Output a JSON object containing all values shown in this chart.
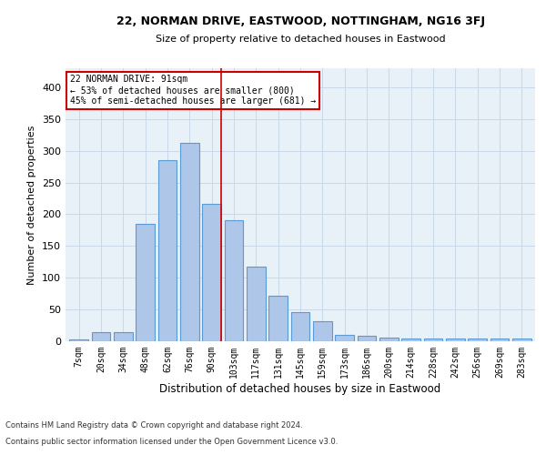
{
  "title1": "22, NORMAN DRIVE, EASTWOOD, NOTTINGHAM, NG16 3FJ",
  "title2": "Size of property relative to detached houses in Eastwood",
  "xlabel": "Distribution of detached houses by size in Eastwood",
  "ylabel": "Number of detached properties",
  "categories": [
    "7sqm",
    "20sqm",
    "34sqm",
    "48sqm",
    "62sqm",
    "76sqm",
    "90sqm",
    "103sqm",
    "117sqm",
    "131sqm",
    "145sqm",
    "159sqm",
    "173sqm",
    "186sqm",
    "200sqm",
    "214sqm",
    "228sqm",
    "242sqm",
    "256sqm",
    "269sqm",
    "283sqm"
  ],
  "values": [
    3,
    15,
    15,
    185,
    285,
    313,
    216,
    190,
    118,
    72,
    46,
    31,
    10,
    8,
    6,
    5,
    5,
    4,
    4,
    4,
    4
  ],
  "bar_color": "#aec6e8",
  "bar_edge_color": "#5b9bd5",
  "grid_color": "#c8d8e8",
  "background_color": "#e8f0f8",
  "property_line_color": "#cc0000",
  "annotation_text": "22 NORMAN DRIVE: 91sqm\n← 53% of detached houses are smaller (800)\n45% of semi-detached houses are larger (681) →",
  "annotation_box_color": "white",
  "annotation_box_edge_color": "#cc0000",
  "footnote1": "Contains HM Land Registry data © Crown copyright and database right 2024.",
  "footnote2": "Contains public sector information licensed under the Open Government Licence v3.0.",
  "ylim": [
    0,
    430
  ],
  "yticks": [
    0,
    50,
    100,
    150,
    200,
    250,
    300,
    350,
    400
  ],
  "bar_width": 0.85,
  "line_x_index": 6
}
